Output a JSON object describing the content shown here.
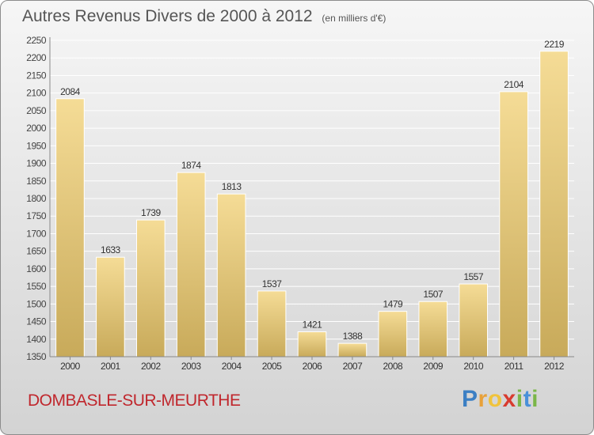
{
  "title": "Autres Revenus Divers de 2000 à 2012",
  "unit": "(en milliers d'€)",
  "location": "DOMBASLE-SUR-MEURTHE",
  "logo": {
    "letters": [
      "P",
      "r",
      "o",
      "x",
      "i",
      "t",
      "i"
    ],
    "colors": [
      "#3b7fc4",
      "#e8a13a",
      "#f0c33c",
      "#d83b2f",
      "#7ab648",
      "#4a90d9",
      "#7ab648"
    ]
  },
  "colors": {
    "bar_top": "#f5dc96",
    "bar_bottom": "#c8aa5a",
    "title_text": "#555555",
    "location_text": "#c0272d"
  },
  "chart_data": {
    "type": "bar",
    "categories": [
      "2000",
      "2001",
      "2002",
      "2003",
      "2004",
      "2005",
      "2006",
      "2007",
      "2008",
      "2009",
      "2010",
      "2011",
      "2012"
    ],
    "values": [
      2084,
      1633,
      1739,
      1874,
      1813,
      1537,
      1421,
      1388,
      1479,
      1507,
      1557,
      2104,
      2219
    ],
    "yticks": [
      1350,
      1400,
      1450,
      1500,
      1550,
      1600,
      1650,
      1700,
      1750,
      1800,
      1850,
      1900,
      1950,
      2000,
      2050,
      2100,
      2150,
      2200,
      2250
    ],
    "ylim": [
      1350,
      2250
    ],
    "grid": true,
    "data_labels": true
  }
}
